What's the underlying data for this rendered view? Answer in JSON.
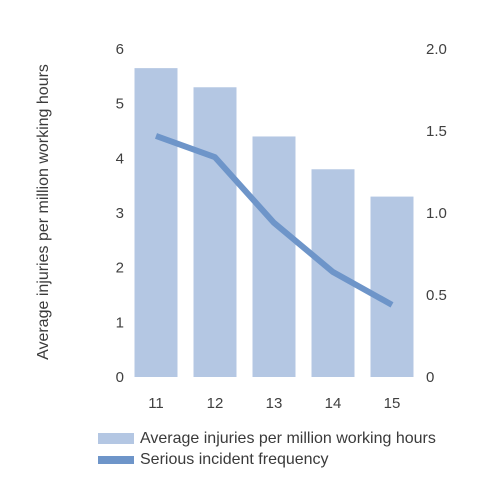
{
  "chart_data": {
    "type": "bar",
    "categories": [
      "11",
      "12",
      "13",
      "14",
      "15"
    ],
    "series": [
      {
        "name": "Average injuries per million working hours",
        "type": "bar",
        "axis": "left",
        "values": [
          5.65,
          5.3,
          4.4,
          3.8,
          3.3
        ],
        "color": "#b4c7e3"
      },
      {
        "name": "Serious incident frequency",
        "type": "line",
        "axis": "right",
        "values": [
          1.47,
          1.34,
          0.94,
          0.64,
          0.44
        ],
        "color": "#6e95c9"
      }
    ],
    "ylabel": "Average injuries per million working hours",
    "ylim": [
      0,
      6
    ],
    "y_ticks": [
      "0",
      "1",
      "2",
      "3",
      "4",
      "5",
      "6"
    ],
    "y2lim": [
      0,
      2
    ],
    "y2_ticks": [
      "0",
      "0.5",
      "1.0",
      "1.5",
      "2.0"
    ],
    "grid": false,
    "legend_position": "bottom"
  }
}
